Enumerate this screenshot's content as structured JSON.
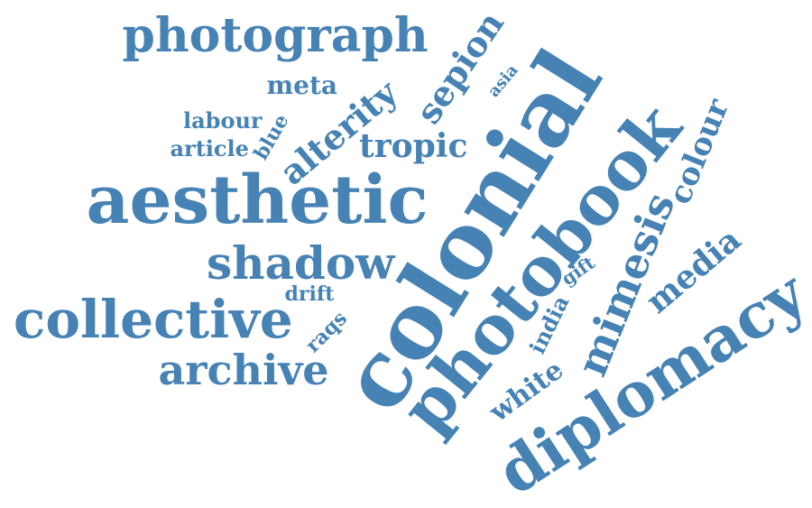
{
  "color": "#4682b4",
  "words": [
    {
      "text": "colonial",
      "weight": 10,
      "orientation": "rotated"
    },
    {
      "text": "photobook",
      "weight": 7.5,
      "orientation": "rotated"
    },
    {
      "text": "diplomacy",
      "weight": 7,
      "orientation": "rotated"
    },
    {
      "text": "aesthetic",
      "weight": 6.5,
      "orientation": "horizontal"
    },
    {
      "text": "collective",
      "weight": 5.5,
      "orientation": "horizontal"
    },
    {
      "text": "photograph",
      "weight": 4.5,
      "orientation": "horizontal"
    },
    {
      "text": "mimesis",
      "weight": 4.5,
      "orientation": "rotated"
    },
    {
      "text": "shadow",
      "weight": 4,
      "orientation": "horizontal"
    },
    {
      "text": "archive",
      "weight": 4,
      "orientation": "horizontal"
    },
    {
      "text": "alterity",
      "weight": 3.5,
      "orientation": "rotated"
    },
    {
      "text": "sepion",
      "weight": 3.5,
      "orientation": "rotated"
    },
    {
      "text": "media",
      "weight": 3.5,
      "orientation": "rotated"
    },
    {
      "text": "colour",
      "weight": 3.2,
      "orientation": "rotated"
    },
    {
      "text": "tropic",
      "weight": 3,
      "orientation": "horizontal"
    },
    {
      "text": "white",
      "weight": 2.8,
      "orientation": "rotated"
    },
    {
      "text": "meta",
      "weight": 2.6,
      "orientation": "horizontal"
    },
    {
      "text": "labour",
      "weight": 2.2,
      "orientation": "horizontal"
    },
    {
      "text": "article",
      "weight": 2.2,
      "orientation": "horizontal"
    },
    {
      "text": "india",
      "weight": 2.2,
      "orientation": "rotated"
    },
    {
      "text": "blue",
      "weight": 2,
      "orientation": "rotated"
    },
    {
      "text": "drift",
      "weight": 2,
      "orientation": "horizontal"
    },
    {
      "text": "raqs",
      "weight": 2,
      "orientation": "rotated"
    },
    {
      "text": "gift",
      "weight": 1.8,
      "orientation": "rotated"
    },
    {
      "text": "asia",
      "weight": 1.6,
      "orientation": "rotated"
    }
  ]
}
